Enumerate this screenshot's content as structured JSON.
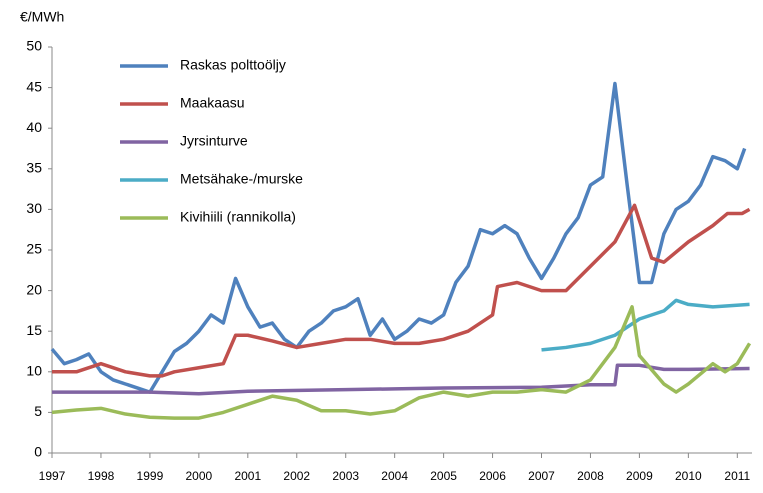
{
  "chart_data": {
    "type": "line",
    "y_label": "€/MWh",
    "xlim": [
      1997,
      2011.3
    ],
    "xticks": [
      1997,
      1998,
      1999,
      2000,
      2001,
      2002,
      2003,
      2004,
      2005,
      2006,
      2007,
      2008,
      2009,
      2010,
      2011
    ],
    "ylim": [
      0,
      50
    ],
    "yticks": [
      0,
      5,
      10,
      15,
      20,
      25,
      30,
      35,
      40,
      45,
      50
    ],
    "legend": "upper left",
    "series": [
      {
        "name": "Raskas polttoöljy",
        "color": "#4f81bd",
        "x": [
          1997,
          1997.25,
          1997.5,
          1997.75,
          1998,
          1998.25,
          1998.5,
          1998.75,
          1999,
          1999.25,
          1999.5,
          1999.75,
          2000,
          2000.25,
          2000.5,
          2000.75,
          2001,
          2001.25,
          2001.5,
          2001.75,
          2002,
          2002.25,
          2002.5,
          2002.75,
          2003,
          2003.25,
          2003.5,
          2003.75,
          2004,
          2004.25,
          2004.5,
          2004.75,
          2005,
          2005.25,
          2005.5,
          2005.75,
          2006,
          2006.25,
          2006.5,
          2006.75,
          2007,
          2007.25,
          2007.5,
          2007.75,
          2008,
          2008.25,
          2008.5,
          2008.75,
          2009,
          2009.25,
          2009.5,
          2009.75,
          2010,
          2010.25,
          2010.5,
          2010.75,
          2011,
          2011.15
        ],
        "values": [
          12.8,
          11,
          11.5,
          12.2,
          10,
          9,
          8.5,
          8,
          7.5,
          10,
          12.5,
          13.5,
          15,
          17,
          16,
          21.5,
          18,
          15.5,
          16,
          14,
          13,
          15,
          16,
          17.5,
          18,
          19,
          14.5,
          16.5,
          14,
          15,
          16.5,
          16,
          17,
          21,
          23,
          27.5,
          27,
          28,
          27,
          24,
          21.5,
          24,
          27,
          29,
          33,
          34,
          45.5,
          33,
          21,
          21,
          27,
          30,
          31,
          33,
          36.5,
          36,
          35,
          37.5
        ]
      },
      {
        "name": "Maakaasu",
        "color": "#c0504d",
        "x": [
          1997,
          1997.5,
          1998,
          1998.5,
          1999,
          1999.25,
          1999.5,
          2000,
          2000.5,
          2000.75,
          2001,
          2001.5,
          2002,
          2002.5,
          2003,
          2003.5,
          2004,
          2004.5,
          2005,
          2005.5,
          2006,
          2006.1,
          2006.5,
          2007,
          2007.25,
          2007.5,
          2008,
          2008.5,
          2008.9,
          2009.25,
          2009.5,
          2010,
          2010.5,
          2010.8,
          2011.1,
          2011.25
        ],
        "values": [
          10,
          10,
          11,
          10,
          9.5,
          9.5,
          10,
          10.5,
          11,
          14.5,
          14.5,
          13.8,
          13,
          13.5,
          14,
          14,
          13.5,
          13.5,
          14,
          15,
          17,
          20.5,
          21,
          20,
          20,
          20,
          23,
          26,
          30.5,
          24,
          23.5,
          26,
          28,
          29.5,
          29.5,
          30
        ]
      },
      {
        "name": "Jyrsinturve",
        "color": "#8064a2",
        "x": [
          1997,
          1999,
          2000,
          2001,
          2003,
          2005,
          2007,
          2008,
          2008.5,
          2008.55,
          2009,
          2009.5,
          2010,
          2011.25
        ],
        "values": [
          7.5,
          7.5,
          7.3,
          7.6,
          7.8,
          8,
          8.1,
          8.4,
          8.4,
          10.8,
          10.8,
          10.3,
          10.3,
          10.4
        ]
      },
      {
        "name": "Metsähake-/murske",
        "color": "#4bacc6",
        "x": [
          2007,
          2007.5,
          2008,
          2008.5,
          2009,
          2009.5,
          2009.75,
          2010,
          2010.5,
          2011.25
        ],
        "values": [
          12.7,
          13,
          13.5,
          14.5,
          16.5,
          17.5,
          18.8,
          18.3,
          18,
          18.3
        ]
      },
      {
        "name": "Kivihiili (rannikolla)",
        "color": "#9bbb59",
        "x": [
          1997,
          1997.5,
          1998,
          1998.5,
          1999,
          1999.5,
          2000,
          2000.5,
          2001,
          2001.5,
          2002,
          2002.5,
          2003,
          2003.5,
          2004,
          2004.5,
          2005,
          2005.5,
          2006,
          2006.5,
          2007,
          2007.5,
          2008,
          2008.5,
          2008.85,
          2009,
          2009.5,
          2009.75,
          2010,
          2010.5,
          2010.75,
          2011,
          2011.25
        ],
        "values": [
          5,
          5.3,
          5.5,
          4.8,
          4.4,
          4.3,
          4.3,
          5,
          6,
          7,
          6.5,
          5.2,
          5.2,
          4.8,
          5.2,
          6.8,
          7.5,
          7,
          7.5,
          7.5,
          7.8,
          7.5,
          9,
          13,
          18,
          12,
          8.5,
          7.5,
          8.5,
          11,
          10,
          11,
          13.5
        ]
      }
    ]
  }
}
